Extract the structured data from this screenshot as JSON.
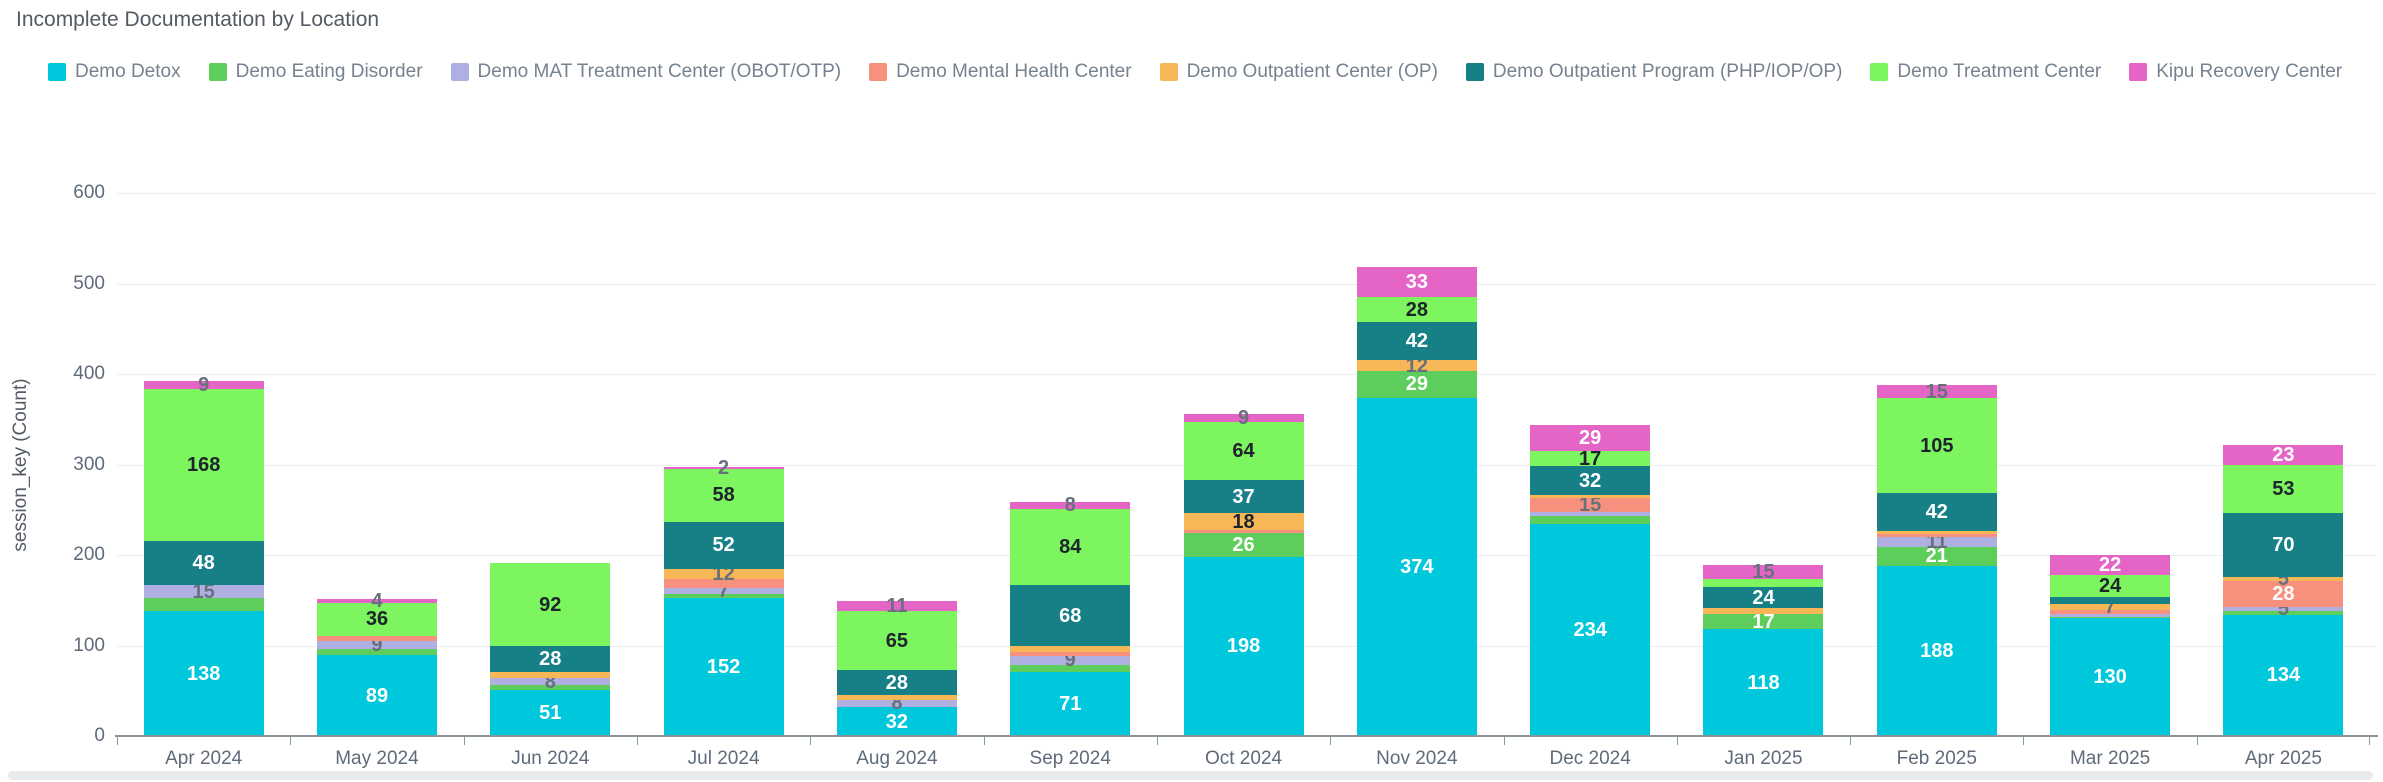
{
  "title": "Incomplete Documentation by Location",
  "y_axis": {
    "title": "session_key (Count)",
    "ticks": [
      0,
      100,
      200,
      300,
      400,
      500,
      600
    ],
    "max": 600
  },
  "label_tone_colors": {
    "w": "#FFFFFF",
    "d": "#1E242C",
    "g": "#68707C"
  },
  "axis_colors": {
    "grid": "#ECEDEE",
    "baseline": "#8A949B",
    "tick_text": "#5F6B7A"
  },
  "chart_data": {
    "type": "bar",
    "stacked": true,
    "title": "Incomplete Documentation by Location",
    "xlabel": "",
    "ylabel": "session_key (Count)",
    "ylim": [
      0,
      600
    ],
    "grid": "horizontal",
    "legend_position": "top",
    "categories": [
      "Apr 2024",
      "May 2024",
      "Jun 2024",
      "Jul 2024",
      "Aug 2024",
      "Sep 2024",
      "Oct 2024",
      "Nov 2024",
      "Dec 2024",
      "Jan 2025",
      "Feb 2025",
      "Mar 2025",
      "Apr 2025"
    ],
    "series": [
      {
        "name": "Demo Detox",
        "color": "#00C8DC",
        "values": [
          138,
          89,
          51,
          152,
          32,
          71,
          198,
          374,
          234,
          118,
          188,
          130,
          134
        ],
        "labels": [
          "w",
          "w",
          "w",
          "w",
          "w",
          "w",
          "w",
          "w",
          "w",
          "w",
          "w",
          "w",
          "w"
        ]
      },
      {
        "name": "Demo Eating Disorder",
        "color": "#5DCE5C",
        "values": [
          14,
          7,
          5,
          5,
          0,
          8,
          26,
          29,
          9,
          17,
          21,
          2,
          4
        ],
        "labels": [
          null,
          null,
          null,
          null,
          null,
          null,
          "w",
          "w",
          null,
          "w",
          "w",
          null,
          null
        ]
      },
      {
        "name": "Demo MAT Treatment Center (OBOT/OTP)",
        "color": "#B0AFE1",
        "values": [
          15,
          9,
          8,
          7,
          8,
          9,
          0,
          0,
          5,
          0,
          11,
          3,
          5
        ],
        "labels": [
          "g",
          "g",
          "g",
          "g",
          "g",
          "g",
          null,
          null,
          null,
          null,
          "g",
          null,
          "g"
        ]
      },
      {
        "name": "Demo Mental Health Center",
        "color": "#F8907E",
        "values": [
          0,
          6,
          0,
          9,
          0,
          5,
          4,
          0,
          15,
          0,
          3,
          4,
          28
        ],
        "labels": [
          null,
          null,
          null,
          null,
          null,
          null,
          null,
          null,
          "g",
          null,
          null,
          null,
          "w"
        ]
      },
      {
        "name": "Demo Outpatient Center (OP)",
        "color": "#F7B757",
        "values": [
          0,
          0,
          7,
          12,
          5,
          6,
          18,
          12,
          3,
          6,
          3,
          7,
          5
        ],
        "labels": [
          null,
          null,
          null,
          "g",
          null,
          null,
          "d",
          "g",
          null,
          null,
          null,
          "g",
          "g"
        ]
      },
      {
        "name": "Demo Outpatient Program (PHP/IOP/OP)",
        "color": "#178087",
        "values": [
          48,
          0,
          28,
          52,
          28,
          68,
          37,
          42,
          32,
          24,
          42,
          8,
          70
        ],
        "labels": [
          "w",
          null,
          "w",
          "w",
          "w",
          "w",
          "w",
          "w",
          "w",
          "w",
          "w",
          null,
          "w"
        ]
      },
      {
        "name": "Demo Treatment Center",
        "color": "#7CF55E",
        "values": [
          168,
          36,
          92,
          58,
          65,
          84,
          64,
          28,
          17,
          9,
          105,
          24,
          53
        ],
        "labels": [
          "d",
          "d",
          "d",
          "d",
          "d",
          "d",
          "d",
          "d",
          "d",
          null,
          "d",
          "d",
          "d"
        ]
      },
      {
        "name": "Kipu Recovery Center",
        "color": "#E565C7",
        "values": [
          9,
          4,
          0,
          2,
          11,
          8,
          9,
          33,
          29,
          15,
          15,
          22,
          23
        ],
        "labels": [
          "g",
          "g",
          null,
          "g",
          "g",
          "g",
          "g",
          "w",
          "w",
          "g",
          "g",
          "w",
          "w"
        ]
      }
    ]
  }
}
